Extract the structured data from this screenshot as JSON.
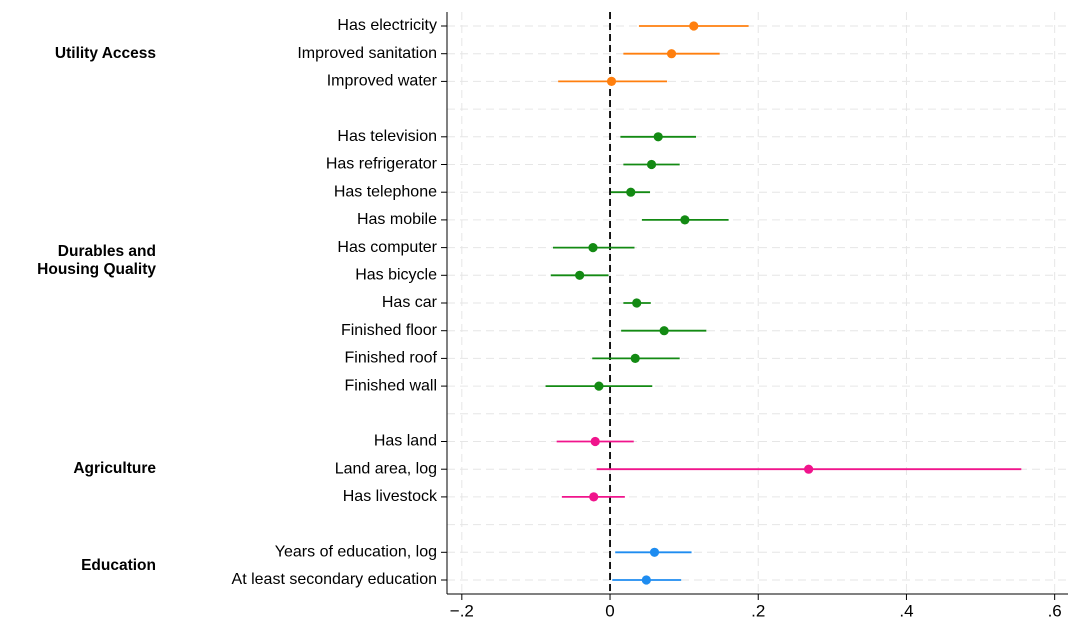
{
  "chart_data": {
    "type": "coefplot",
    "xlim": [
      -0.22,
      0.618
    ],
    "xticks": [
      {
        "value": -0.2,
        "label": "−.2"
      },
      0,
      {
        "value": 0.2,
        "label": ".2"
      },
      {
        "value": 0.4,
        "label": ".4"
      },
      {
        "value": 0.6,
        "label": ".6"
      }
    ],
    "refline": 0,
    "grid": true,
    "series": [
      {
        "name": "Utility Access",
        "color": "#ff7f0e",
        "categories": [
          "Has electricity",
          "Improved sanitation",
          "Improved water"
        ],
        "values": [
          0.113,
          0.083,
          0.002
        ],
        "ci_low": [
          0.039,
          0.018,
          -0.07
        ],
        "ci_high": [
          0.187,
          0.148,
          0.077
        ]
      },
      {
        "name": "Durables and Housing Quality",
        "color": "#138a13",
        "categories": [
          "Has television",
          "Has refrigerator",
          "Has telephone",
          "Has mobile",
          "Has computer",
          "Has bicycle",
          "Has car",
          "Finished floor",
          "Finished roof",
          "Finished wall"
        ],
        "values": [
          0.065,
          0.056,
          0.028,
          0.101,
          -0.023,
          -0.041,
          0.036,
          0.073,
          0.034,
          -0.015
        ],
        "ci_low": [
          0.014,
          0.018,
          0.001,
          0.043,
          -0.077,
          -0.08,
          0.018,
          0.015,
          -0.024,
          -0.087
        ],
        "ci_high": [
          0.116,
          0.094,
          0.054,
          0.16,
          0.033,
          -0.002,
          0.055,
          0.13,
          0.094,
          0.057
        ]
      },
      {
        "name": "Agriculture",
        "color": "#f0148c",
        "categories": [
          "Has land",
          "Land area, log",
          "Has livestock"
        ],
        "values": [
          -0.02,
          0.268,
          -0.022
        ],
        "ci_low": [
          -0.072,
          -0.018,
          -0.065
        ],
        "ci_high": [
          0.032,
          0.555,
          0.02
        ]
      },
      {
        "name": "Education",
        "color": "#1e8cf0",
        "categories": [
          "Years of education, log",
          "At least secondary education"
        ],
        "values": [
          0.06,
          0.049
        ],
        "ci_low": [
          0.007,
          0.003
        ],
        "ci_high": [
          0.11,
          0.096
        ]
      }
    ]
  }
}
